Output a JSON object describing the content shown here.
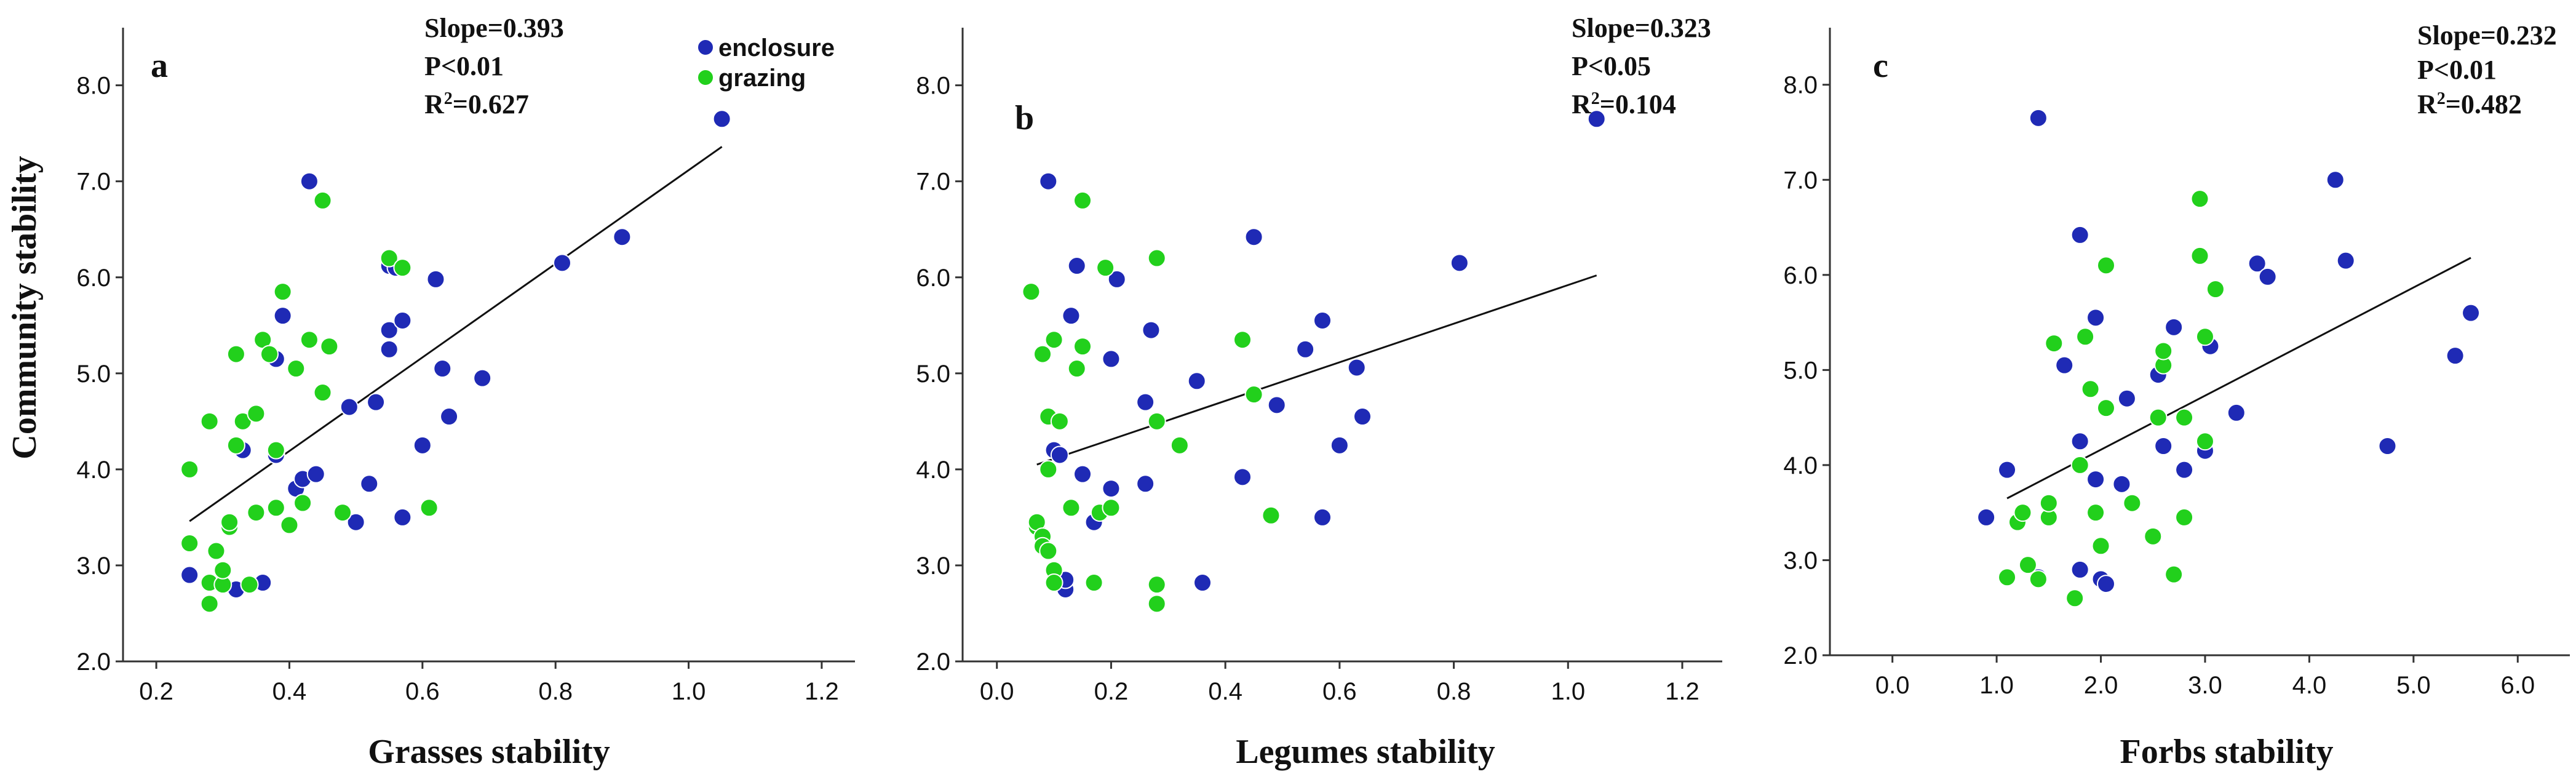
{
  "figure": {
    "ylabel": "Community stability"
  },
  "legend": {
    "items": [
      {
        "label": "enclosure",
        "color": "#1f2ab5"
      },
      {
        "label": "grazing",
        "color": "#22d01c"
      }
    ]
  },
  "chart_data": [
    {
      "type": "scatter",
      "panel": "a",
      "xlabel": "Grasses stability",
      "ylabel": "Community stability",
      "xlim": [
        0.15,
        1.25
      ],
      "ylim": [
        2.0,
        8.6
      ],
      "xticks": [
        "0.2",
        "0.4",
        "0.6",
        "0.8",
        "1.0",
        "1.2"
      ],
      "yticks": [
        "2.0",
        "3.0",
        "4.0",
        "5.0",
        "6.0",
        "7.0",
        "8.0"
      ],
      "stats": {
        "slope": "Slope=0.393",
        "p": "P<0.01",
        "r2_prefix": "R",
        "r2_sup": "2",
        "r2_value": "=0.627"
      },
      "fit_line": {
        "x": [
          0.25,
          1.05
        ],
        "y": [
          3.46,
          7.36
        ]
      },
      "series": [
        {
          "name": "enclosure",
          "color": "#1f2ab5",
          "points": [
            [
              0.25,
              2.9
            ],
            [
              0.32,
              2.75
            ],
            [
              0.33,
              4.2
            ],
            [
              0.34,
              2.8
            ],
            [
              0.36,
              2.82
            ],
            [
              0.38,
              4.15
            ],
            [
              0.38,
              5.15
            ],
            [
              0.39,
              5.6
            ],
            [
              0.41,
              3.8
            ],
            [
              0.42,
              3.9
            ],
            [
              0.44,
              3.95
            ],
            [
              0.43,
              7.0
            ],
            [
              0.49,
              4.65
            ],
            [
              0.5,
              3.45
            ],
            [
              0.52,
              3.85
            ],
            [
              0.53,
              4.7
            ],
            [
              0.55,
              5.25
            ],
            [
              0.55,
              5.45
            ],
            [
              0.55,
              6.12
            ],
            [
              0.56,
              6.1
            ],
            [
              0.57,
              5.55
            ],
            [
              0.57,
              3.5
            ],
            [
              0.6,
              4.25
            ],
            [
              0.62,
              5.98
            ],
            [
              0.63,
              5.05
            ],
            [
              0.64,
              4.55
            ],
            [
              0.69,
              4.95
            ],
            [
              0.81,
              6.15
            ],
            [
              0.9,
              6.42
            ],
            [
              1.05,
              7.65
            ]
          ]
        },
        {
          "name": "grazing",
          "color": "#22d01c",
          "points": [
            [
              0.25,
              4.0
            ],
            [
              0.25,
              3.23
            ],
            [
              0.28,
              4.5
            ],
            [
              0.28,
              2.82
            ],
            [
              0.28,
              2.6
            ],
            [
              0.29,
              3.15
            ],
            [
              0.3,
              2.8
            ],
            [
              0.3,
              2.95
            ],
            [
              0.31,
              3.4
            ],
            [
              0.31,
              3.45
            ],
            [
              0.32,
              5.2
            ],
            [
              0.32,
              4.25
            ],
            [
              0.33,
              4.5
            ],
            [
              0.34,
              2.8
            ],
            [
              0.35,
              3.55
            ],
            [
              0.35,
              4.58
            ],
            [
              0.36,
              5.35
            ],
            [
              0.37,
              5.2
            ],
            [
              0.38,
              3.6
            ],
            [
              0.38,
              4.2
            ],
            [
              0.39,
              5.85
            ],
            [
              0.4,
              3.42
            ],
            [
              0.41,
              5.05
            ],
            [
              0.42,
              3.65
            ],
            [
              0.43,
              5.35
            ],
            [
              0.45,
              4.8
            ],
            [
              0.45,
              6.8
            ],
            [
              0.46,
              5.28
            ],
            [
              0.48,
              3.55
            ],
            [
              0.55,
              6.2
            ],
            [
              0.57,
              6.1
            ],
            [
              0.61,
              3.6
            ]
          ]
        }
      ]
    },
    {
      "type": "scatter",
      "panel": "b",
      "xlabel": "Legumes stability",
      "ylabel": "Community stability",
      "xlim": [
        -0.06,
        1.27
      ],
      "ylim": [
        2.0,
        8.6
      ],
      "xticks": [
        "0.0",
        "0.2",
        "0.4",
        "0.6",
        "0.8",
        "1.0",
        "1.2"
      ],
      "yticks": [
        "2.0",
        "3.0",
        "4.0",
        "5.0",
        "6.0",
        "7.0",
        "8.0"
      ],
      "stats": {
        "slope": "Slope=0.323",
        "p": "P<0.05",
        "r2_prefix": "R",
        "r2_sup": "2",
        "r2_value": "=0.104"
      },
      "fit_line": {
        "x": [
          0.07,
          1.05
        ],
        "y": [
          4.05,
          6.02
        ]
      },
      "series": [
        {
          "name": "enclosure",
          "color": "#1f2ab5",
          "points": [
            [
              0.09,
              7.0
            ],
            [
              0.1,
              4.2
            ],
            [
              0.11,
              4.15
            ],
            [
              0.12,
              2.75
            ],
            [
              0.12,
              2.85
            ],
            [
              0.13,
              5.6
            ],
            [
              0.14,
              6.12
            ],
            [
              0.15,
              3.95
            ],
            [
              0.17,
              3.45
            ],
            [
              0.2,
              3.8
            ],
            [
              0.2,
              5.15
            ],
            [
              0.21,
              5.98
            ],
            [
              0.26,
              3.85
            ],
            [
              0.26,
              4.7
            ],
            [
              0.27,
              5.45
            ],
            [
              0.35,
              4.92
            ],
            [
              0.36,
              2.82
            ],
            [
              0.43,
              3.92
            ],
            [
              0.45,
              6.42
            ],
            [
              0.49,
              4.67
            ],
            [
              0.54,
              5.25
            ],
            [
              0.57,
              5.55
            ],
            [
              0.57,
              3.5
            ],
            [
              0.6,
              4.25
            ],
            [
              0.63,
              5.06
            ],
            [
              0.64,
              4.55
            ],
            [
              0.81,
              6.15
            ],
            [
              1.05,
              7.65
            ]
          ]
        },
        {
          "name": "grazing",
          "color": "#22d01c",
          "points": [
            [
              0.06,
              5.85
            ],
            [
              0.07,
              3.4
            ],
            [
              0.07,
              3.45
            ],
            [
              0.08,
              3.3
            ],
            [
              0.08,
              3.2
            ],
            [
              0.08,
              5.2
            ],
            [
              0.09,
              4.0
            ],
            [
              0.09,
              4.55
            ],
            [
              0.09,
              3.15
            ],
            [
              0.1,
              2.95
            ],
            [
              0.1,
              2.82
            ],
            [
              0.1,
              5.35
            ],
            [
              0.11,
              4.5
            ],
            [
              0.13,
              3.6
            ],
            [
              0.14,
              5.05
            ],
            [
              0.15,
              6.8
            ],
            [
              0.15,
              5.28
            ],
            [
              0.17,
              2.82
            ],
            [
              0.18,
              3.55
            ],
            [
              0.19,
              6.1
            ],
            [
              0.2,
              3.6
            ],
            [
              0.28,
              6.2
            ],
            [
              0.28,
              4.5
            ],
            [
              0.28,
              2.8
            ],
            [
              0.28,
              2.6
            ],
            [
              0.32,
              4.25
            ],
            [
              0.43,
              5.35
            ],
            [
              0.45,
              4.78
            ],
            [
              0.48,
              3.52
            ]
          ]
        }
      ]
    },
    {
      "type": "scatter",
      "panel": "c",
      "xlabel": "Forbs stability",
      "ylabel": "Community stability",
      "xlim": [
        -0.6,
        6.5
      ],
      "ylim": [
        2.0,
        8.6
      ],
      "xticks": [
        "0.0",
        "1.0",
        "2.0",
        "3.0",
        "4.0",
        "5.0",
        "6.0"
      ],
      "yticks": [
        "2.0",
        "3.0",
        "4.0",
        "5.0",
        "6.0",
        "7.0",
        "8.0"
      ],
      "stats": {
        "slope": "Slope=0.232",
        "p": "P<0.01",
        "r2_prefix": "R",
        "r2_sup": "2",
        "r2_value": "=0.482"
      },
      "fit_line": {
        "x": [
          1.1,
          5.55
        ],
        "y": [
          3.65,
          6.18
        ]
      },
      "series": [
        {
          "name": "enclosure",
          "color": "#1f2ab5",
          "points": [
            [
              0.9,
              3.45
            ],
            [
              1.1,
              3.95
            ],
            [
              1.4,
              2.82
            ],
            [
              1.4,
              7.65
            ],
            [
              1.65,
              5.05
            ],
            [
              1.8,
              2.9
            ],
            [
              1.8,
              4.25
            ],
            [
              1.8,
              6.42
            ],
            [
              1.95,
              5.55
            ],
            [
              1.95,
              3.85
            ],
            [
              2.0,
              2.8
            ],
            [
              2.05,
              2.75
            ],
            [
              2.2,
              3.8
            ],
            [
              2.25,
              4.7
            ],
            [
              2.55,
              4.95
            ],
            [
              2.6,
              4.2
            ],
            [
              2.7,
              5.45
            ],
            [
              2.8,
              3.95
            ],
            [
              3.0,
              4.15
            ],
            [
              3.05,
              5.25
            ],
            [
              3.3,
              4.55
            ],
            [
              3.5,
              6.12
            ],
            [
              3.6,
              5.98
            ],
            [
              4.25,
              7.0
            ],
            [
              4.35,
              6.15
            ],
            [
              4.75,
              4.2
            ],
            [
              5.4,
              5.15
            ],
            [
              5.55,
              5.6
            ]
          ]
        },
        {
          "name": "grazing",
          "color": "#22d01c",
          "points": [
            [
              1.1,
              2.82
            ],
            [
              1.2,
              3.4
            ],
            [
              1.25,
              3.5
            ],
            [
              1.3,
              2.95
            ],
            [
              1.4,
              2.8
            ],
            [
              1.5,
              3.45
            ],
            [
              1.5,
              3.6
            ],
            [
              1.55,
              5.28
            ],
            [
              1.75,
              2.6
            ],
            [
              1.8,
              4.0
            ],
            [
              1.85,
              5.35
            ],
            [
              1.9,
              4.8
            ],
            [
              1.95,
              3.5
            ],
            [
              2.0,
              3.15
            ],
            [
              2.05,
              4.6
            ],
            [
              2.05,
              6.1
            ],
            [
              2.3,
              3.6
            ],
            [
              2.5,
              3.25
            ],
            [
              2.55,
              4.5
            ],
            [
              2.6,
              5.05
            ],
            [
              2.6,
              5.2
            ],
            [
              2.7,
              2.85
            ],
            [
              2.8,
              4.5
            ],
            [
              2.8,
              3.45
            ],
            [
              2.95,
              6.8
            ],
            [
              2.95,
              6.2
            ],
            [
              3.0,
              5.35
            ],
            [
              3.0,
              4.25
            ],
            [
              3.1,
              5.85
            ]
          ]
        }
      ]
    }
  ]
}
